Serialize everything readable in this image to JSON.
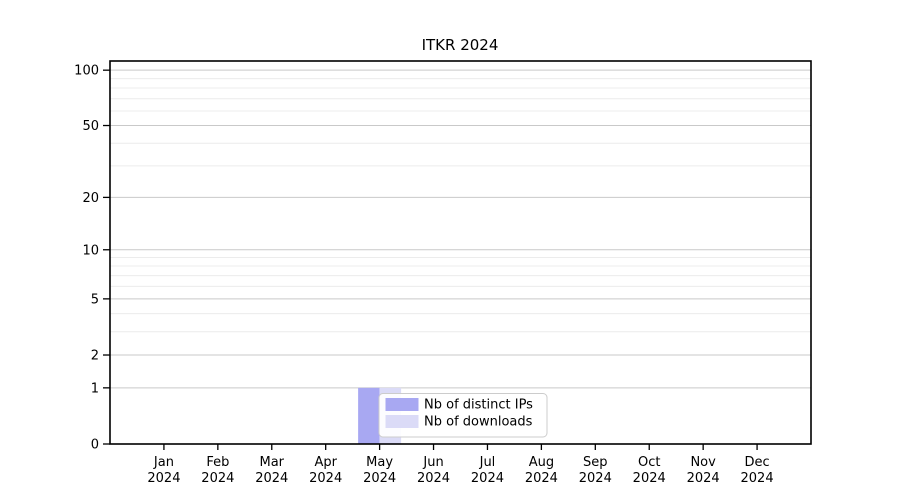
{
  "figure": {
    "title": "ITKR 2024"
  },
  "chart_data": {
    "type": "bar",
    "title": "ITKR 2024",
    "xlabel": "",
    "ylabel": "",
    "categories": [
      "Jan 2024",
      "Feb 2024",
      "Mar 2024",
      "Apr 2024",
      "May 2024",
      "Jun 2024",
      "Jul 2024",
      "Aug 2024",
      "Sep 2024",
      "Oct 2024",
      "Nov 2024",
      "Dec 2024"
    ],
    "series": [
      {
        "name": "Nb of distinct IPs",
        "color": "#a8a8f2",
        "values": [
          0,
          0,
          0,
          0,
          1,
          0,
          0,
          0,
          0,
          0,
          0,
          0
        ]
      },
      {
        "name": "Nb of downloads",
        "color": "#dbdbf7",
        "values": [
          0,
          0,
          0,
          0,
          1,
          0,
          0,
          0,
          0,
          0,
          0,
          0
        ]
      }
    ],
    "y_scale": "log1p",
    "ylim": [
      0,
      112
    ],
    "y_ticks": [
      0,
      1,
      2,
      5,
      10,
      20,
      50,
      100
    ],
    "y_minor_gridlines": [
      3,
      4,
      6,
      7,
      8,
      9,
      30,
      40,
      60,
      70,
      80,
      90
    ],
    "grid": true,
    "legend": {
      "position": "lower-center-inside",
      "labels": [
        "Nb of distinct IPs",
        "Nb of downloads"
      ]
    },
    "colors": {
      "spine": "#000000",
      "tick_text": "#000000",
      "grid_major": "#c9c9c9",
      "grid_minor": "#ececec",
      "legend_border": "#cccccc",
      "legend_background": "#ffffff"
    }
  }
}
